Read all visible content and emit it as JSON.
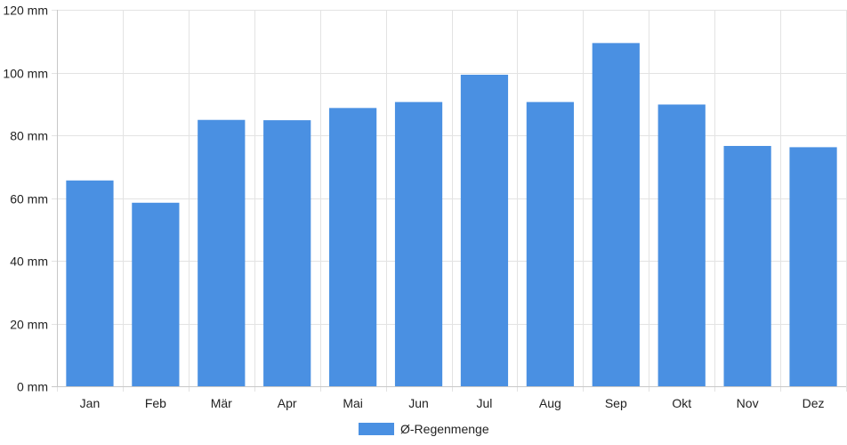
{
  "chart_data": {
    "type": "bar",
    "categories": [
      "Jan",
      "Feb",
      "Mär",
      "Apr",
      "Mai",
      "Jun",
      "Jul",
      "Aug",
      "Sep",
      "Okt",
      "Nov",
      "Dez"
    ],
    "series": [
      {
        "name": "Ø-Regenmenge",
        "values": [
          65.6,
          58.5,
          84.9,
          84.8,
          88.7,
          90.6,
          99.3,
          90.6,
          109.4,
          89.8,
          76.6,
          76.2
        ]
      }
    ],
    "unit": "mm",
    "ylim": [
      0,
      120
    ],
    "yticks": [
      "0 mm",
      "20 mm",
      "40 mm",
      "60 mm",
      "80 mm",
      "100 mm",
      "120 mm"
    ],
    "ytick_values": [
      0,
      20,
      40,
      60,
      80,
      100,
      120
    ],
    "grid": true,
    "legend_position": "bottom",
    "colors": {
      "bar": "#4a90e2",
      "grid": "#e3e3e3",
      "axis": "#c8c8c8",
      "text": "#222222"
    }
  }
}
